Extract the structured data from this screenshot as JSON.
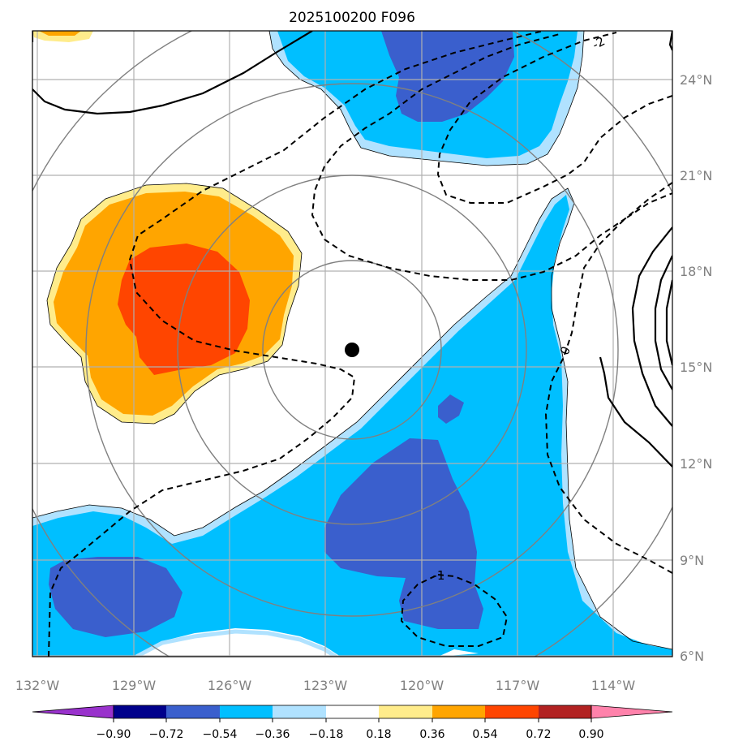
{
  "title": "2025100200 F096",
  "lat_labels": [
    "24°N",
    "21°N",
    "18°N",
    "15°N",
    "12°N",
    "9°N",
    "6°N"
  ],
  "lon_labels": [
    "132°W",
    "129°W",
    "126°W",
    "123°W",
    "120°W",
    "117°W",
    "114°W"
  ],
  "contour_labels": [
    "-2",
    "0",
    "-1"
  ],
  "colorbar": {
    "tick_labels": [
      "−0.90",
      "−0.72",
      "−0.54",
      "−0.36",
      "−0.18",
      "0.18",
      "0.36",
      "0.54",
      "0.72",
      "0.90"
    ],
    "colors": [
      "#9932CC",
      "#00008B",
      "#3A5FCD",
      "#00BFFF",
      "#B0E2FF",
      "#FFFFFF",
      "#FFEC8B",
      "#FFA500",
      "#FF4500",
      "#B22222",
      "#FF82AB"
    ]
  },
  "colors": {
    "grid": "#808080",
    "positive": [
      "#FFEC8B",
      "#FFA500",
      "#FF4500"
    ],
    "negative": [
      "#B0E2FF",
      "#00BFFF",
      "#3A5FCD"
    ]
  },
  "storm_center": {
    "lon": "122.2°W",
    "lat": "15.5°N"
  }
}
